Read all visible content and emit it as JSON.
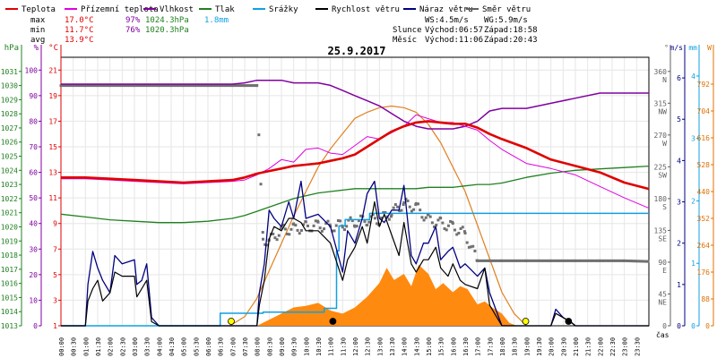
{
  "chart_data": {
    "type": "line",
    "title": "25.9.2017",
    "legend": [
      {
        "key": "temp",
        "label": "Teplota",
        "color": "#e00000"
      },
      {
        "key": "feels",
        "label": "Přízemní teplota",
        "color": "#e000e0"
      },
      {
        "key": "humidity",
        "label": "Vlhkost",
        "color": "#8000a0"
      },
      {
        "key": "pressure",
        "label": "Tlak",
        "color": "#208020"
      },
      {
        "key": "rain",
        "label": "Srážky",
        "color": "#10a0e0"
      },
      {
        "key": "wind",
        "label": "Rychlost větru",
        "color": "#000000"
      },
      {
        "key": "gust",
        "label": "Náraz větru",
        "color": "#000080"
      },
      {
        "key": "direction",
        "label": "Směr větru",
        "color": "#606060"
      }
    ],
    "stats": {
      "max_label": "max",
      "max_temp": "17.0°C",
      "max_hum": "97%",
      "max_press": "1024.3hPa",
      "rain_total": "1.8mm",
      "min_label": "min",
      "min_temp": "11.7°C",
      "min_hum": "76%",
      "min_press": "1020.3hPa",
      "avg_label": "avg",
      "avg_temp": "13.9°C"
    },
    "wind_info": {
      "ws": "WS:4.5m/s",
      "wg": "WG:5.9m/s"
    },
    "sun": {
      "label": "Slunce",
      "rise": "Východ:06:57",
      "set": "Západ:18:58"
    },
    "moon": {
      "label": "Měsíc",
      "rise": "Východ:11:06",
      "set": "Západ:20:43"
    },
    "axes_left": [
      {
        "unit": "hPa",
        "color": "#208020",
        "ticks": [
          "1013",
          "1014",
          "1015",
          "1016",
          "1017",
          "1018",
          "1019",
          "1020",
          "1021",
          "1022",
          "1023",
          "1024",
          "1025",
          "1026",
          "1027",
          "1028",
          "1029",
          "1030",
          "1031"
        ]
      },
      {
        "unit": "%",
        "color": "#8000a0",
        "ticks": [
          "0",
          "10",
          "20",
          "30",
          "40",
          "50",
          "60",
          "70",
          "80",
          "90",
          "100"
        ]
      },
      {
        "unit": "°C",
        "color": "#e00000",
        "ticks": [
          "1",
          "3",
          "5",
          "7",
          "9",
          "11",
          "13",
          "15",
          "17",
          "19",
          "21"
        ]
      }
    ],
    "axes_right": [
      {
        "unit": "°",
        "color": "#606060",
        "ticks": [
          "0",
          "45",
          "90",
          "135",
          "180",
          "225",
          "270",
          "315",
          "360"
        ],
        "dirs": [
          "",
          "NE",
          "E",
          "SE",
          "S",
          "SW",
          "W",
          "NW",
          "N"
        ]
      },
      {
        "unit": "m/s",
        "color": "#000080",
        "ticks": [
          "0",
          "1",
          "2",
          "3",
          "4",
          "5",
          "6"
        ]
      },
      {
        "unit": "mm",
        "color": "#10a0e0",
        "ticks": [
          "0",
          "1",
          "2",
          "3",
          "4"
        ]
      },
      {
        "unit": "W",
        "color": "#e07000",
        "ticks": [
          "0",
          "88",
          "176",
          "264",
          "352",
          "440",
          "528",
          "616",
          "704",
          "792"
        ]
      }
    ],
    "x_unit": "čas",
    "x_ticks": [
      "00:00",
      "00:30",
      "01:00",
      "01:30",
      "02:00",
      "02:30",
      "03:00",
      "03:30",
      "04:00",
      "04:30",
      "05:00",
      "05:30",
      "06:00",
      "06:30",
      "07:00",
      "07:30",
      "08:00",
      "08:30",
      "09:00",
      "09:30",
      "10:00",
      "10:30",
      "11:00",
      "11:30",
      "12:00",
      "12:30",
      "13:00",
      "13:30",
      "14:00",
      "14:30",
      "15:00",
      "15:30",
      "16:00",
      "16:30",
      "17:00",
      "17:30",
      "18:00",
      "18:30",
      "19:00",
      "19:30",
      "20:00",
      "20:30",
      "21:00",
      "21:30",
      "22:00",
      "22:30",
      "23:00",
      "23:30"
    ],
    "series": {
      "temp": {
        "unit": "°C",
        "x": [
          0,
          1,
          2,
          3,
          4,
          5,
          6,
          7,
          7.5,
          8,
          8.5,
          9,
          9.5,
          10,
          10.5,
          11,
          11.5,
          12,
          12.5,
          13,
          13.5,
          14,
          14.5,
          15,
          15.5,
          16,
          16.5,
          17,
          17.5,
          18,
          19,
          20,
          21,
          22,
          23,
          24
        ],
        "y": [
          12.6,
          12.6,
          12.5,
          12.4,
          12.3,
          12.2,
          12.3,
          12.4,
          12.6,
          12.9,
          13.1,
          13.3,
          13.5,
          13.6,
          13.7,
          13.9,
          14.1,
          14.4,
          15.0,
          15.6,
          16.2,
          16.6,
          16.9,
          17.0,
          16.9,
          16.8,
          16.8,
          16.5,
          16.0,
          15.6,
          14.9,
          14.0,
          13.5,
          13.0,
          12.2,
          11.7
        ]
      },
      "feels": {
        "unit": "°C",
        "x": [
          0,
          1,
          2,
          3,
          4,
          5,
          6,
          7,
          7.5,
          8,
          8.5,
          9,
          9.5,
          10,
          10.5,
          11,
          11.5,
          12,
          12.5,
          13,
          13.5,
          14,
          14.5,
          15,
          15.5,
          16,
          16.5,
          17,
          17.5,
          18,
          19,
          20,
          21,
          22,
          23,
          24
        ],
        "y": [
          12.5,
          12.5,
          12.4,
          12.3,
          12.2,
          12.1,
          12.2,
          12.3,
          12.4,
          12.8,
          13.3,
          14.0,
          13.8,
          14.8,
          14.9,
          14.5,
          14.4,
          15.1,
          15.8,
          15.6,
          16.1,
          16.6,
          17.5,
          17.2,
          16.9,
          16.9,
          16.6,
          16.3,
          15.5,
          14.8,
          13.7,
          13.3,
          12.8,
          11.9,
          11.0,
          10.2
        ]
      },
      "humidity": {
        "unit": "%",
        "x": [
          0,
          1,
          2,
          3,
          4,
          5,
          6,
          7,
          7.5,
          8,
          8.5,
          9,
          9.5,
          10,
          10.5,
          11,
          11.5,
          12,
          12.5,
          13,
          13.5,
          14,
          14.5,
          15,
          15.5,
          16,
          16.5,
          17,
          17.5,
          18,
          19,
          20,
          21,
          22,
          23,
          24
        ],
        "y": [
          94.5,
          94.5,
          94.5,
          94.5,
          94.5,
          94.5,
          94.5,
          94.5,
          95,
          96,
          96,
          96,
          95,
          95,
          95,
          94,
          92,
          90,
          88,
          86,
          83,
          80,
          78,
          77,
          77,
          77,
          78,
          80,
          84,
          85,
          85,
          87,
          89,
          91,
          91,
          91
        ]
      },
      "pressure": {
        "unit": "hPa",
        "x": [
          0,
          1,
          2,
          3,
          4,
          5,
          6,
          7,
          7.5,
          8,
          8.5,
          9,
          9.5,
          10,
          10.5,
          11,
          11.5,
          12,
          12.5,
          13,
          13.5,
          14,
          14.5,
          15,
          15.5,
          16,
          16.5,
          17,
          17.5,
          18,
          19,
          20,
          21,
          22,
          23,
          24
        ],
        "y": [
          1020.9,
          1020.7,
          1020.5,
          1020.4,
          1020.3,
          1020.3,
          1020.4,
          1020.6,
          1020.8,
          1021.1,
          1021.4,
          1021.7,
          1022.0,
          1022.2,
          1022.4,
          1022.5,
          1022.6,
          1022.7,
          1022.7,
          1022.7,
          1022.7,
          1022.7,
          1022.7,
          1022.8,
          1022.8,
          1022.8,
          1022.9,
          1023.0,
          1023.0,
          1023.1,
          1023.5,
          1023.8,
          1024.0,
          1024.1,
          1024.2,
          1024.3
        ]
      },
      "rain": {
        "unit": "mm",
        "x": [
          0,
          6.5,
          6.5,
          8.25,
          8.25,
          10.75,
          10.75,
          11.25,
          11.25,
          11.35,
          11.35,
          11.6,
          11.6,
          12.6,
          12.6,
          24
        ],
        "y": [
          0,
          0,
          0.2,
          0.2,
          0.22,
          0.22,
          0.28,
          0.28,
          1.2,
          1.2,
          1.6,
          1.6,
          1.7,
          1.7,
          1.8,
          1.8
        ]
      },
      "wind": {
        "unit": "m/s",
        "x": [
          0,
          1,
          1.1,
          1.3,
          1.5,
          1.7,
          2,
          2.2,
          2.5,
          3,
          3.1,
          3.3,
          3.5,
          3.7,
          4,
          8,
          8.1,
          8.3,
          8.5,
          8.7,
          9,
          9.3,
          9.5,
          9.8,
          10,
          10.5,
          11,
          11.5,
          11.7,
          12,
          12.3,
          12.5,
          12.8,
          13,
          13.2,
          13.5,
          13.8,
          14,
          14.3,
          14.5,
          14.8,
          15,
          15.3,
          15.5,
          15.8,
          16,
          16.3,
          16.5,
          17,
          17.3,
          17.5,
          18,
          18.5,
          19,
          20,
          20.2,
          20.5,
          20.8,
          21,
          24
        ],
        "y": [
          0,
          0,
          0.6,
          0.9,
          1.1,
          0.6,
          0.8,
          1.3,
          1.2,
          1.2,
          0.7,
          0.9,
          1.1,
          0.1,
          0,
          0,
          0.5,
          1.1,
          2.1,
          2.4,
          2.3,
          2.6,
          2.6,
          2.5,
          2.3,
          2.3,
          2.0,
          1.1,
          1.6,
          1.9,
          2.4,
          2.0,
          3.0,
          2.4,
          2.7,
          2.2,
          1.7,
          2.5,
          1.5,
          1.3,
          1.6,
          1.6,
          1.9,
          1.4,
          1.2,
          1.5,
          1.1,
          1.0,
          0.9,
          1.4,
          0.5,
          0,
          0,
          0,
          0,
          0.3,
          0.2,
          0.1,
          0,
          0
        ]
      },
      "gust": {
        "unit": "m/s",
        "x": [
          0,
          1,
          1.1,
          1.3,
          1.5,
          1.7,
          2,
          2.2,
          2.5,
          3,
          3.1,
          3.3,
          3.5,
          3.7,
          4,
          8,
          8.1,
          8.3,
          8.5,
          8.7,
          9,
          9.3,
          9.5,
          9.8,
          10,
          10.5,
          11,
          11.5,
          11.7,
          12,
          12.3,
          12.5,
          12.8,
          13,
          13.2,
          13.5,
          13.8,
          14,
          14.3,
          14.5,
          14.8,
          15,
          15.3,
          15.5,
          15.8,
          16,
          16.3,
          16.5,
          17,
          17.3,
          17.5,
          18,
          18.5,
          19,
          20,
          20.2,
          20.5,
          20.8,
          21,
          24
        ],
        "y": [
          0,
          0,
          1.0,
          1.8,
          1.4,
          1.1,
          0.8,
          1.7,
          1.5,
          1.6,
          1.0,
          1.1,
          1.5,
          0.2,
          0,
          0,
          0.8,
          1.5,
          2.8,
          2.6,
          2.4,
          3.0,
          2.6,
          3.5,
          2.6,
          2.7,
          2.4,
          1.3,
          2.3,
          2.0,
          2.6,
          3.2,
          3.5,
          2.6,
          2.5,
          2.8,
          2.8,
          3.4,
          1.7,
          1.5,
          2.0,
          2.0,
          2.4,
          1.6,
          1.8,
          1.9,
          1.4,
          1.5,
          1.2,
          1.4,
          0.8,
          0,
          0,
          0,
          0,
          0.4,
          0.2,
          0.1,
          0,
          0
        ]
      },
      "direction": {
        "unit": "°",
        "x": [
          0,
          1,
          2,
          3,
          4,
          5,
          6,
          7,
          7.5,
          8,
          8.25,
          8.5,
          9,
          9.5,
          10,
          10.5,
          11,
          11.5,
          12,
          12.5,
          13,
          13.5,
          14,
          14.5,
          15,
          15.5,
          16,
          16.5,
          17,
          17.5,
          18,
          19,
          20,
          21,
          22,
          23,
          24
        ],
        "y": [
          340,
          340,
          340,
          340,
          340,
          340,
          340,
          340,
          340,
          340,
          122,
          120,
          135,
          137,
          140,
          142,
          140,
          143,
          147,
          150,
          150,
          160,
          173,
          168,
          150,
          145,
          140,
          130,
          92,
          92,
          92,
          92,
          92,
          92,
          92,
          92,
          91
        ]
      },
      "solar": {
        "unit": "W",
        "x": [
          6.9,
          7.5,
          8,
          8.5,
          9,
          9.5,
          10,
          10.5,
          11,
          11.5,
          12,
          12.5,
          13,
          13.5,
          14,
          14.5,
          15,
          15.5,
          16,
          16.5,
          17,
          17.5,
          18,
          18.5,
          19
        ],
        "y": [
          0,
          30,
          90,
          180,
          270,
          360,
          440,
          520,
          580,
          630,
          680,
          700,
          715,
          720,
          715,
          700,
          660,
          600,
          520,
          440,
          330,
          220,
          110,
          40,
          0
        ]
      },
      "solar_measured": {
        "unit": "W",
        "x": [
          8,
          8.5,
          9,
          9.5,
          10,
          10.5,
          11,
          11.5,
          12,
          12.5,
          13,
          13.3,
          13.6,
          14,
          14.3,
          14.6,
          15,
          15.3,
          15.6,
          16,
          16.3,
          16.6,
          17,
          17.3,
          17.6,
          18,
          18.3,
          18.6
        ],
        "y": [
          0,
          20,
          40,
          60,
          65,
          75,
          50,
          40,
          60,
          95,
          140,
          190,
          150,
          170,
          130,
          200,
          170,
          120,
          140,
          110,
          130,
          120,
          70,
          80,
          60,
          40,
          10,
          0
        ]
      }
    },
    "sun_markers": {
      "sunrise_hour": 6.95,
      "sunset_hour": 18.97
    },
    "moon_markers": {
      "moonrise_hour": 11.1,
      "moonset_hour": 20.72
    }
  }
}
